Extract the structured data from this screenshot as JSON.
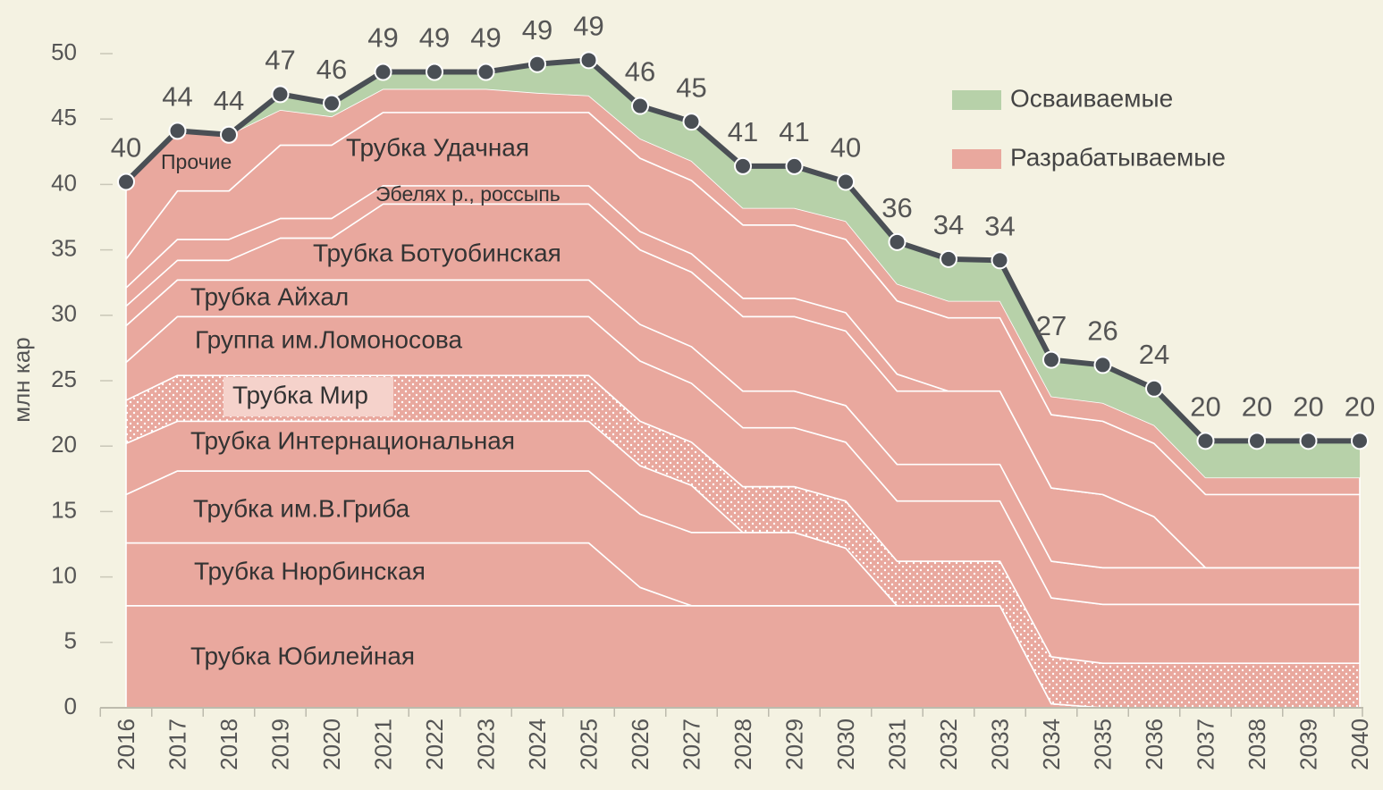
{
  "chart_data": {
    "type": "stacked_area",
    "y_label": "млн кар",
    "categories": [
      "2016",
      "2017",
      "2018",
      "2019",
      "2020",
      "2021",
      "2022",
      "2023",
      "2024",
      "2025",
      "2026",
      "2027",
      "2028",
      "2029",
      "2030",
      "2031",
      "2032",
      "2033",
      "2034",
      "2035",
      "2036",
      "2037",
      "2038",
      "2039",
      "2040"
    ],
    "ylim": [
      0,
      50
    ],
    "yticks": [
      0,
      5,
      10,
      15,
      20,
      25,
      30,
      35,
      40,
      45,
      50
    ],
    "groups": [
      {
        "name": "Осваиваемые",
        "color": "#b7d1a9",
        "series": [
          {
            "values": [
              0,
              0,
              0,
              1.2,
              1.0,
              1.3,
              1.3,
              1.3,
              2.2,
              2.7,
              2.5,
              3.0,
              3.2,
              3.2,
              3.0,
              3.2,
              3.2,
              3.1,
              2.8,
              2.9,
              2.8,
              2.8,
              2.8,
              2.8,
              2.8
            ]
          }
        ]
      },
      {
        "name": "Разрабатываемые",
        "color": "#e9a89e",
        "series": [
          {
            "name": "Трубка Юбилейная",
            "values": [
              7.8,
              7.8,
              7.8,
              7.8,
              7.8,
              7.8,
              7.8,
              7.8,
              7.8,
              7.8,
              7.8,
              7.8,
              7.8,
              7.8,
              7.8,
              7.8,
              7.8,
              7.8,
              0.3,
              0,
              0,
              0,
              0,
              0,
              0
            ]
          },
          {
            "name": "Трубка Нюрбинская",
            "values": [
              4.8,
              4.8,
              4.8,
              4.8,
              4.8,
              4.8,
              4.8,
              4.8,
              4.8,
              4.8,
              1.4,
              0,
              0,
              0,
              0,
              0,
              0,
              0,
              0,
              0,
              0,
              0,
              0,
              0,
              0
            ]
          },
          {
            "name": "Трубка им.В.Гриба",
            "values": [
              3.7,
              5.5,
              5.5,
              5.5,
              5.5,
              5.5,
              5.5,
              5.5,
              5.5,
              5.5,
              5.6,
              5.6,
              5.6,
              5.6,
              4.4,
              0,
              0,
              0,
              0,
              0,
              0,
              0,
              0,
              0,
              0
            ]
          },
          {
            "name": "Трубка Интернациональная",
            "values": [
              3.9,
              3.8,
              3.8,
              3.8,
              3.8,
              3.8,
              3.8,
              3.8,
              3.8,
              3.8,
              3.7,
              3.6,
              0,
              0,
              0,
              0,
              0,
              0,
              0,
              0,
              0,
              0,
              0,
              0,
              0
            ]
          },
          {
            "name": "Трубка Мир",
            "hatch": true,
            "values": [
              3.3,
              3.5,
              3.5,
              3.5,
              3.5,
              3.5,
              3.5,
              3.5,
              3.5,
              3.5,
              3.4,
              3.3,
              3.5,
              3.5,
              3.6,
              3.4,
              3.4,
              3.4,
              3.6,
              3.4,
              3.4,
              3.4,
              3.4,
              3.4,
              3.4
            ]
          },
          {
            "name": "Группа им.Ломоносова",
            "values": [
              2.9,
              4.5,
              4.5,
              4.5,
              4.5,
              4.5,
              4.5,
              4.5,
              4.5,
              4.5,
              4.6,
              4.5,
              4.5,
              4.5,
              4.5,
              4.6,
              4.6,
              4.6,
              4.5,
              4.5,
              4.5,
              4.5,
              4.5,
              4.5,
              4.5
            ]
          },
          {
            "name": "Трубка Айхал",
            "values": [
              2.8,
              2.8,
              2.8,
              2.8,
              2.8,
              2.8,
              2.8,
              2.8,
              2.8,
              2.8,
              2.8,
              2.8,
              2.8,
              2.8,
              2.8,
              2.8,
              2.8,
              2.8,
              2.8,
              2.8,
              2.8,
              2.8,
              2.8,
              2.8,
              2.8
            ]
          },
          {
            "name": "Трубка Ботуобинская",
            "values": [
              1.5,
              1.5,
              1.5,
              3.2,
              3.2,
              5.8,
              5.8,
              5.8,
              5.8,
              5.8,
              5.7,
              5.7,
              5.7,
              5.7,
              5.7,
              5.6,
              5.6,
              5.6,
              5.6,
              5.6,
              3.9,
              0,
              0,
              0,
              0
            ]
          },
          {
            "name": "Эбелях р., россыпь",
            "values": [
              1.4,
              1.6,
              1.6,
              1.5,
              1.5,
              1.4,
              1.4,
              1.4,
              1.4,
              1.4,
              1.4,
              1.4,
              1.4,
              1.4,
              1.4,
              1.3,
              0,
              0,
              0,
              0,
              0,
              0,
              0,
              0,
              0
            ]
          },
          {
            "name": "Трубка Удачная",
            "values": [
              2.2,
              3.7,
              3.7,
              5.6,
              5.6,
              5.6,
              5.6,
              5.6,
              5.6,
              5.6,
              5.6,
              5.6,
              5.6,
              5.6,
              5.6,
              5.6,
              5.6,
              5.6,
              5.6,
              5.6,
              5.6,
              5.6,
              5.6,
              5.6,
              5.6
            ]
          },
          {
            "name": "Прочие",
            "values": [
              5.9,
              4.6,
              4.3,
              2.7,
              2.2,
              1.8,
              1.8,
              1.8,
              1.5,
              1.3,
              1.5,
              1.5,
              1.3,
              1.3,
              1.4,
              1.3,
              1.3,
              1.3,
              1.4,
              1.4,
              1.4,
              1.3,
              1.3,
              1.3,
              1.3
            ]
          }
        ]
      }
    ],
    "total": {
      "color": "#4a4f55",
      "values": [
        40.2,
        44.1,
        43.8,
        46.9,
        46.2,
        48.6,
        48.6,
        48.6,
        49.2,
        49.5,
        46.0,
        44.8,
        41.4,
        41.4,
        40.2,
        35.6,
        34.3,
        34.2,
        26.6,
        26.2,
        24.4,
        20.4,
        20.4,
        20.4,
        20.4
      ],
      "value_labels": [
        "40",
        "44",
        "44",
        "47",
        "46",
        "49",
        "49",
        "49",
        "49",
        "49",
        "46",
        "45",
        "41",
        "41",
        "40",
        "36",
        "34",
        "34",
        "27",
        "26",
        "24",
        "20",
        "20",
        "20",
        "20"
      ]
    }
  }
}
